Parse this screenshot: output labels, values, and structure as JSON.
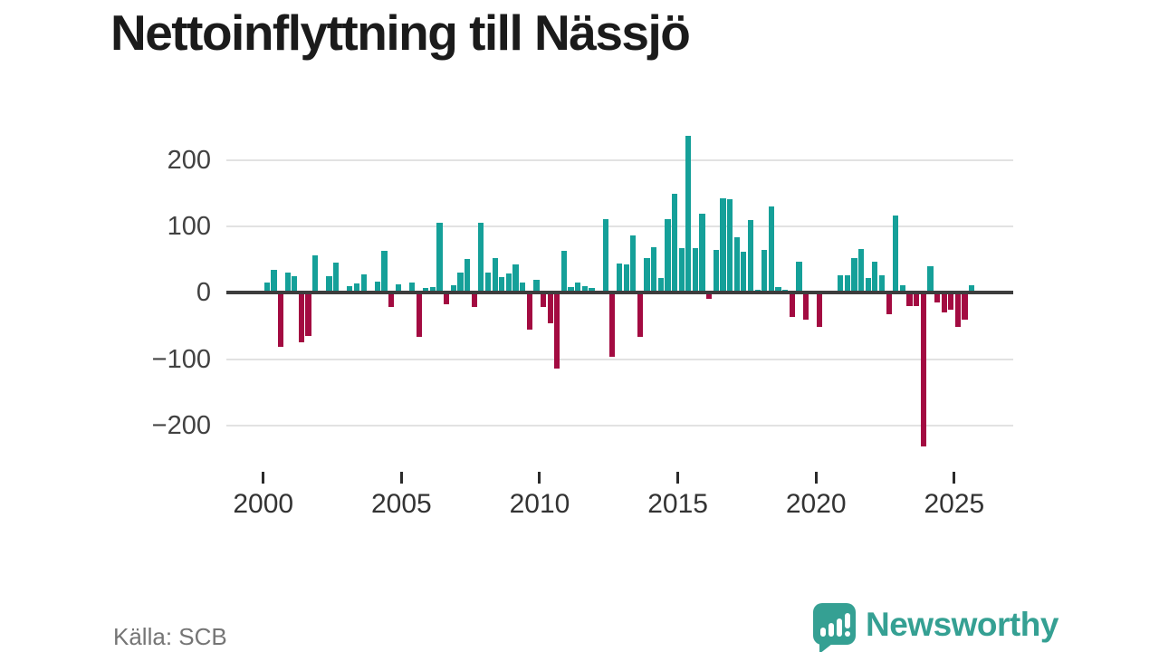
{
  "title": "Nettoinflyttning till Nässjö",
  "source": "Källa: SCB",
  "branding": {
    "name": "Newsworthy",
    "icon": "newsworthy-speech-bubble-chart-icon"
  },
  "colors": {
    "positive_bar": "#15a099",
    "negative_bar": "#a30b41",
    "grid": "#e2e2e2",
    "zero_line": "#3d3d3d",
    "title": "#1b1b1b",
    "axis_text": "#414141",
    "source_text": "#757575",
    "brand": "#35a093"
  },
  "chart_data": {
    "type": "bar",
    "title": "Nettoinflyttning till Nässjö",
    "frequency": "quarterly",
    "x_start": "2000-Q1",
    "x_end": "2025-Q3",
    "x_tick_years": [
      2000,
      2005,
      2010,
      2015,
      2020,
      2025
    ],
    "y_ticks": [
      200,
      100,
      0,
      -100,
      -200
    ],
    "ylim": [
      -250,
      250
    ],
    "grid": true,
    "legend": "none",
    "positive_color_meaning": "net in-migration",
    "negative_color_meaning": "net out-migration",
    "values": [
      16,
      35,
      -82,
      31,
      25,
      -74,
      -65,
      56,
      0,
      25,
      45,
      0,
      10,
      14,
      28,
      0,
      17,
      63,
      -22,
      13,
      3,
      16,
      -66,
      7,
      9,
      105,
      -17,
      11,
      30,
      51,
      -22,
      106,
      31,
      52,
      23,
      29,
      43,
      16,
      -56,
      20,
      -22,
      -46,
      -114,
      63,
      8,
      16,
      10,
      7,
      2,
      111,
      -96,
      44,
      43,
      87,
      -67,
      52,
      69,
      22,
      111,
      149,
      67,
      237,
      67,
      119,
      -9,
      64,
      142,
      141,
      83,
      62,
      109,
      5,
      64,
      130,
      8,
      4,
      -36,
      47,
      -41,
      0,
      -51,
      0,
      0,
      27,
      26,
      52,
      66,
      22,
      47,
      26,
      -32,
      117,
      11,
      -20,
      -20,
      -232,
      40,
      -14,
      -29,
      -26,
      -52,
      -41,
      11
    ]
  }
}
